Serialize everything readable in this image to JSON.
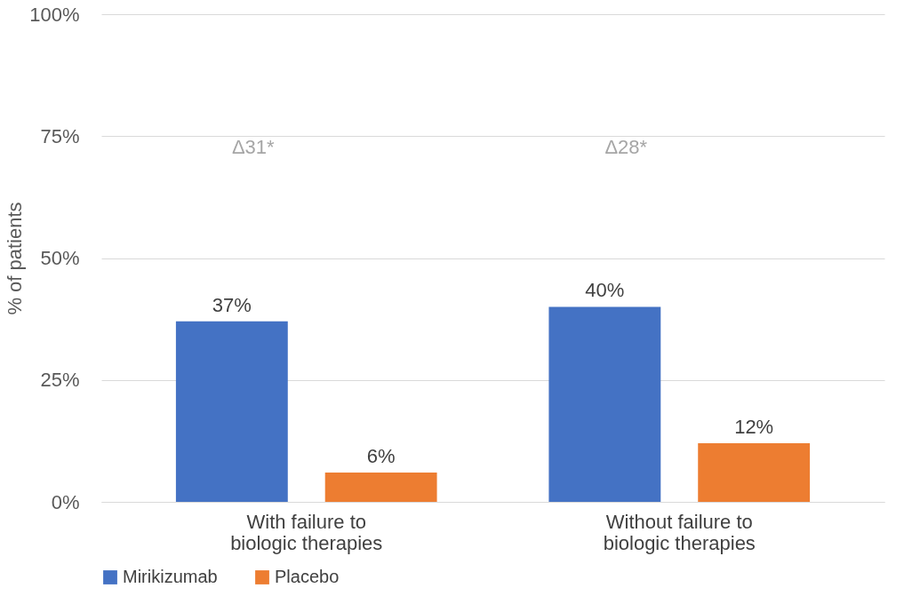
{
  "chart_data": {
    "type": "bar",
    "ylabel": "% of patients",
    "categories": [
      "With failure to biologic therapies",
      "Without failure to biologic therapies"
    ],
    "series": [
      {
        "name": "Mirikizumab",
        "color": "#4472c4",
        "values": [
          37,
          40
        ]
      },
      {
        "name": "Placebo",
        "color": "#ed7d31",
        "values": [
          6,
          12
        ]
      }
    ],
    "ylim": [
      0,
      100
    ],
    "yticks": [
      {
        "value": 0,
        "label": "0%"
      },
      {
        "value": 25,
        "label": "25%"
      },
      {
        "value": 50,
        "label": "50%"
      },
      {
        "value": 75,
        "label": "75%"
      },
      {
        "value": 100,
        "label": "100%"
      }
    ],
    "grid": "y",
    "legend": "bottom",
    "value_labels": [
      [
        "37%",
        "40%"
      ],
      [
        "6%",
        "12%"
      ]
    ],
    "annotations": [
      "Δ31*",
      "Δ28*"
    ]
  }
}
